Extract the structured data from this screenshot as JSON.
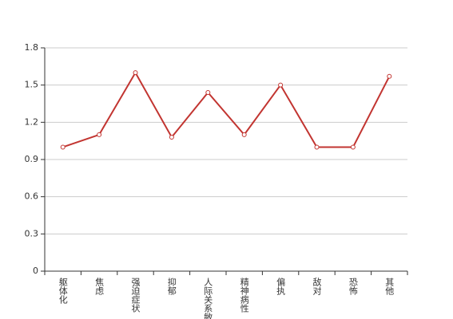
{
  "chart_data": {
    "type": "line",
    "categories": [
      "躯体化",
      "焦虑",
      "强迫症状",
      "抑郁",
      "人际关系敏感",
      "精神病性",
      "偏执",
      "敌对",
      "恐怖",
      "其他"
    ],
    "series": [
      {
        "color": "#c23531",
        "values": [
          1.0,
          1.1,
          1.6,
          1.08,
          1.44,
          1.1,
          1.5,
          1.0,
          1.0,
          1.57
        ]
      }
    ],
    "ylim": [
      0,
      1.8
    ],
    "yticks": [
      0,
      0.3,
      0.6,
      0.9,
      1.2,
      1.5,
      1.8
    ],
    "grid": true
  }
}
